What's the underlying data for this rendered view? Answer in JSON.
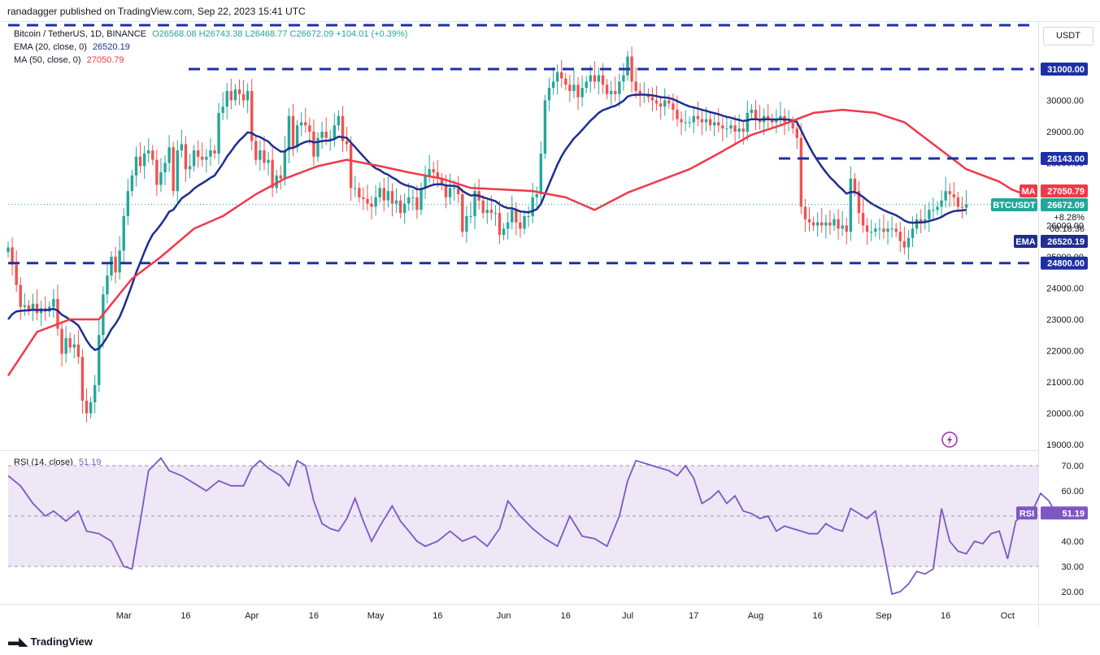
{
  "header": {
    "published": "ranadagger published on TradingView.com, Sep 22, 2023 15:41 UTC"
  },
  "legend": {
    "symbol": "Bitcoin / TetherUS, 1D, BINANCE",
    "ohlc": "O26568.08  H26743.38  L26468.77  C26672.09  +104.01 (+0.39%)",
    "ema_label": "EMA (20, close, 0)",
    "ema_value": "26520.19",
    "ma_label": "MA (50, close, 0)",
    "ma_value": "27050.79",
    "rsi_label": "RSI (14, close)",
    "rsi_value": "51.19"
  },
  "currency": "USDT",
  "footer": {
    "brand": "TradingView"
  },
  "colors": {
    "up": "#26a69a",
    "down": "#ef5350",
    "ema": "#1e2f8f",
    "ma": "#f0394a",
    "rsi": "#7e57c2",
    "rsi_band": "#ede7f6",
    "level_line": "#1e2fa6"
  },
  "chart_data": [
    {
      "type": "candlestick",
      "price_ticks": [
        31000,
        30000,
        29000,
        28000,
        27000,
        26000,
        25000,
        24000,
        23000,
        22000,
        21000,
        20000,
        19000
      ],
      "price_ticks_text": [
        "31000.00",
        "30000.00",
        "29000.00",
        "28000.00",
        "27000.00",
        "26000.00",
        "25000.00",
        "24000.00",
        "23000.00",
        "22000.00",
        "21000.00",
        "20000.00",
        "19000.00"
      ],
      "ylim": [
        18800,
        32500
      ],
      "x_tick_labels": [
        "Mar",
        "16",
        "Apr",
        "16",
        "May",
        "16",
        "Jun",
        "16",
        "Jul",
        "17",
        "Aug",
        "16",
        "Sep",
        "16",
        "Oct"
      ],
      "x_tick_days": [
        28,
        43,
        59,
        74,
        89,
        104,
        120,
        135,
        150,
        166,
        181,
        196,
        212,
        227,
        242
      ],
      "levels": [
        {
          "value": 31000,
          "label": "31000.00"
        },
        {
          "value": 28143,
          "label": "28143.00"
        },
        {
          "value": 24800,
          "label": "24800.00"
        }
      ],
      "top_dashed_value": 32500,
      "last_price": {
        "value": 26672.09,
        "tag": "BTCUSDT",
        "label": "26672.09",
        "change": "+8.28%",
        "countdown": "08:18:36"
      },
      "ma_tag": {
        "value": 27050.79,
        "tag": "MA",
        "label": "27050.79"
      },
      "ema_tag": {
        "value": 26520.19,
        "tag": "EMA",
        "label": "26520.19"
      },
      "closes": [
        25300,
        24750,
        24100,
        23400,
        23450,
        23300,
        23500,
        23200,
        23350,
        23250,
        23400,
        23650,
        22700,
        21900,
        22400,
        22100,
        22200,
        21800,
        20400,
        20000,
        20350,
        20900,
        22500,
        23800,
        24400,
        25000,
        24500,
        25200,
        26300,
        27100,
        27600,
        28200,
        27900,
        28300,
        28400,
        28100,
        27300,
        27700,
        28000,
        28500,
        27100,
        28400,
        28600,
        27800,
        27900,
        28400,
        28200,
        28100,
        28200,
        28400,
        28300,
        29600,
        29800,
        30300,
        30000,
        30350,
        30200,
        30000,
        30300,
        28700,
        28100,
        28400,
        28000,
        28100,
        27200,
        27600,
        27500,
        28400,
        29500,
        28500,
        29200,
        29300,
        29200,
        29000,
        28200,
        28800,
        29000,
        28800,
        28800,
        29200,
        29500,
        28700,
        28600,
        27200,
        27200,
        26900,
        26850,
        26700,
        26600,
        26900,
        27200,
        26800,
        27100,
        26700,
        26800,
        26400,
        26700,
        26900,
        26900,
        26500,
        27200,
        27600,
        27800,
        27700,
        27500,
        27300,
        26900,
        27200,
        27200,
        27000,
        25800,
        26300,
        26300,
        27100,
        26800,
        26400,
        26500,
        26400,
        26400,
        25700,
        25900,
        26100,
        26500,
        26100,
        25900,
        26300,
        26300,
        26900,
        27000,
        28300,
        30000,
        30400,
        30600,
        30900,
        30700,
        30500,
        30300,
        30500,
        30100,
        30400,
        30600,
        30800,
        30600,
        30800,
        30500,
        30200,
        30300,
        30200,
        30600,
        30800,
        31400,
        30600,
        30300,
        30200,
        30200,
        30100,
        30000,
        29900,
        29800,
        30000,
        29900,
        29700,
        29400,
        29300,
        29300,
        29300,
        29500,
        29400,
        29300,
        29400,
        29200,
        29300,
        29200,
        29100,
        29100,
        29200,
        29000,
        29100,
        29000,
        29600,
        29700,
        29400,
        29300,
        29500,
        29400,
        29300,
        29400,
        29500,
        29300,
        29300,
        29100,
        28800,
        26600,
        26200,
        26100,
        26000,
        26100,
        26000,
        26100,
        26000,
        26200,
        25900,
        26000,
        25800,
        27500,
        27100,
        26400,
        26000,
        25800,
        25800,
        25900,
        25900,
        25800,
        25900,
        25900,
        25800,
        25500,
        25300,
        25600,
        25900,
        26200,
        26100,
        26200,
        26500,
        26500,
        26600,
        26800,
        27100,
        27000,
        26900,
        26600,
        26570,
        26672
      ],
      "ema_first": 23000,
      "ma_seed_days": [
        [
          0,
          21200
        ],
        [
          7,
          22600
        ],
        [
          15,
          23000
        ],
        [
          22,
          23000
        ],
        [
          30,
          24300
        ],
        [
          37,
          25000
        ],
        [
          45,
          25900
        ],
        [
          52,
          26300
        ],
        [
          60,
          27000
        ],
        [
          67,
          27500
        ],
        [
          75,
          27900
        ],
        [
          82,
          28100
        ],
        [
          90,
          27900
        ],
        [
          97,
          27700
        ],
        [
          105,
          27500
        ],
        [
          112,
          27200
        ],
        [
          120,
          27150
        ],
        [
          127,
          27100
        ],
        [
          135,
          26900
        ],
        [
          142,
          26500
        ],
        [
          150,
          27050
        ],
        [
          157,
          27400
        ],
        [
          165,
          27800
        ],
        [
          172,
          28300
        ],
        [
          180,
          28900
        ],
        [
          187,
          29200
        ],
        [
          195,
          29600
        ],
        [
          202,
          29700
        ],
        [
          210,
          29600
        ],
        [
          217,
          29300
        ],
        [
          225,
          28500
        ],
        [
          232,
          27800
        ],
        [
          240,
          27400
        ],
        [
          243,
          27150
        ],
        [
          245,
          27050
        ]
      ],
      "rsi_ticks": [
        70,
        60,
        50,
        40,
        30,
        20
      ],
      "rsi_ticks_text": [
        "70.00",
        "60.00",
        "50.00",
        "40.00",
        "30.00",
        "20.00"
      ],
      "rsi_ylim": [
        15,
        76
      ],
      "rsi_band": [
        30,
        70
      ],
      "rsi_tag": {
        "value": 51.19,
        "tag": "RSI",
        "label": "51.19"
      },
      "rsi_points": [
        [
          0,
          66
        ],
        [
          3,
          62
        ],
        [
          6,
          55
        ],
        [
          9,
          50
        ],
        [
          11,
          52
        ],
        [
          14,
          48
        ],
        [
          17,
          52
        ],
        [
          19,
          44
        ],
        [
          22,
          43
        ],
        [
          25,
          40
        ],
        [
          28,
          30
        ],
        [
          30,
          29
        ],
        [
          32,
          48
        ],
        [
          34,
          68
        ],
        [
          37,
          73
        ],
        [
          39,
          68
        ],
        [
          42,
          66
        ],
        [
          45,
          63
        ],
        [
          48,
          60
        ],
        [
          51,
          64
        ],
        [
          54,
          62
        ],
        [
          57,
          62
        ],
        [
          59,
          69
        ],
        [
          61,
          72
        ],
        [
          63,
          69
        ],
        [
          66,
          66
        ],
        [
          68,
          62
        ],
        [
          70,
          72
        ],
        [
          72,
          70
        ],
        [
          74,
          56
        ],
        [
          76,
          47
        ],
        [
          78,
          45
        ],
        [
          80,
          44
        ],
        [
          82,
          49
        ],
        [
          84,
          57
        ],
        [
          86,
          48
        ],
        [
          88,
          40
        ],
        [
          90,
          46
        ],
        [
          93,
          54
        ],
        [
          95,
          48
        ],
        [
          97,
          44
        ],
        [
          99,
          40
        ],
        [
          101,
          38
        ],
        [
          104,
          40
        ],
        [
          107,
          44
        ],
        [
          110,
          40
        ],
        [
          113,
          42
        ],
        [
          116,
          38
        ],
        [
          119,
          45
        ],
        [
          121,
          56
        ],
        [
          124,
          50
        ],
        [
          127,
          45
        ],
        [
          130,
          41
        ],
        [
          133,
          38
        ],
        [
          136,
          50
        ],
        [
          139,
          42
        ],
        [
          142,
          41
        ],
        [
          145,
          38
        ],
        [
          148,
          50
        ],
        [
          150,
          64
        ],
        [
          152,
          72
        ],
        [
          154,
          71
        ],
        [
          156,
          70
        ],
        [
          158,
          69
        ],
        [
          160,
          68
        ],
        [
          162,
          66
        ],
        [
          164,
          70
        ],
        [
          166,
          65
        ],
        [
          168,
          55
        ],
        [
          170,
          57
        ],
        [
          172,
          60
        ],
        [
          174,
          55
        ],
        [
          176,
          58
        ],
        [
          178,
          52
        ],
        [
          180,
          51
        ],
        [
          182,
          49
        ],
        [
          184,
          50
        ],
        [
          186,
          44
        ],
        [
          188,
          46
        ],
        [
          190,
          45
        ],
        [
          192,
          44
        ],
        [
          194,
          43
        ],
        [
          196,
          43
        ],
        [
          198,
          47
        ],
        [
          200,
          45
        ],
        [
          202,
          44
        ],
        [
          204,
          53
        ],
        [
          206,
          51
        ],
        [
          208,
          49
        ],
        [
          210,
          52
        ],
        [
          212,
          36
        ],
        [
          214,
          19
        ],
        [
          216,
          20
        ],
        [
          218,
          23
        ],
        [
          220,
          28
        ],
        [
          222,
          27
        ],
        [
          224,
          29
        ],
        [
          226,
          53
        ],
        [
          228,
          40
        ],
        [
          230,
          36
        ],
        [
          232,
          35
        ],
        [
          234,
          40
        ],
        [
          236,
          39
        ],
        [
          238,
          43
        ],
        [
          240,
          44
        ],
        [
          242,
          33
        ],
        [
          244,
          48
        ],
        [
          246,
          51
        ],
        [
          248,
          52
        ],
        [
          250,
          59
        ],
        [
          252,
          56
        ],
        [
          254,
          50
        ],
        [
          256,
          51.19
        ]
      ]
    }
  ]
}
